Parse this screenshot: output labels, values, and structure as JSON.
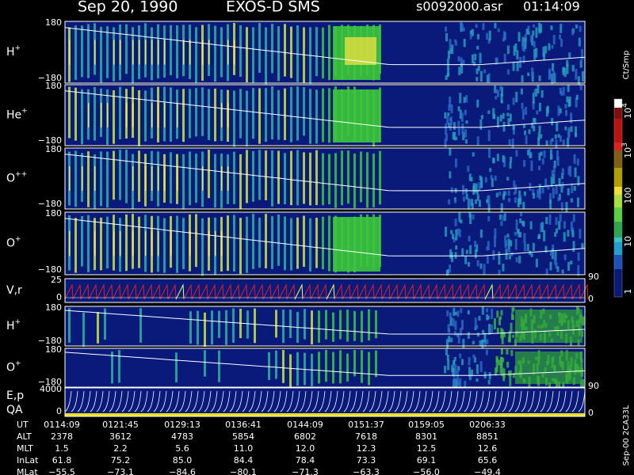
{
  "header": {
    "date": "Sep 20, 1990",
    "instrument": "EXOS-D SMS",
    "file": "s0092000.asr",
    "time": "01:14:09"
  },
  "panels": [
    {
      "label": "H",
      "sup": "+",
      "ticks": [
        "180",
        "−180"
      ]
    },
    {
      "label": "He",
      "sup": "+",
      "ticks": [
        "180",
        "−180"
      ]
    },
    {
      "label": "O",
      "sup": "++",
      "ticks": [
        "180",
        "−180"
      ]
    },
    {
      "label": "O",
      "sup": "+",
      "ticks": [
        "180",
        "−180"
      ]
    },
    {
      "label": "V,r",
      "ticks": [
        "25",
        "0"
      ],
      "right_ticks": [
        "90",
        "0"
      ]
    },
    {
      "label": "H",
      "sup": "+",
      "ticks": [
        "180",
        "−180"
      ]
    },
    {
      "label": "O",
      "sup": "+",
      "ticks": [
        "180",
        "−180"
      ]
    },
    {
      "label": "E,p",
      "label2": "QA",
      "ticks": [
        "4000",
        "0"
      ],
      "right_ticks": [
        "90",
        "0"
      ]
    }
  ],
  "colorbar": {
    "unit": "Ct/Smp",
    "ticks": [
      {
        "base": "10",
        "exp": "4"
      },
      {
        "base": "10",
        "exp": "3"
      },
      "100",
      "10",
      "1"
    ]
  },
  "footer_id": "Sep-00 2CA33L",
  "table": {
    "rows": [
      {
        "label": "UT",
        "cells": [
          "0114:09",
          "0121:45",
          "0129:13",
          "0136:41",
          "0144:09",
          "0151:37",
          "0159:05",
          "0206:33"
        ]
      },
      {
        "label": "ALT",
        "cells": [
          "2378",
          "3612",
          "4783",
          "5854",
          "6802",
          "7618",
          "8301",
          "8851"
        ]
      },
      {
        "label": "MLT",
        "cells": [
          "1.5",
          "2.2",
          "5.6",
          "11.0",
          "12.0",
          "12.3",
          "12.5",
          "12.6"
        ]
      },
      {
        "label": "InLat",
        "cells": [
          "61.8",
          "75.2",
          "85.0",
          "84.4",
          "78.4",
          "73.3",
          "69.1",
          "65.6"
        ]
      },
      {
        "label": "MLat",
        "cells": [
          "−55.5",
          "−73.1",
          "−84.6",
          "−80.1",
          "−71.3",
          "−63.3",
          "−56.0",
          "−49.4"
        ]
      }
    ]
  }
}
